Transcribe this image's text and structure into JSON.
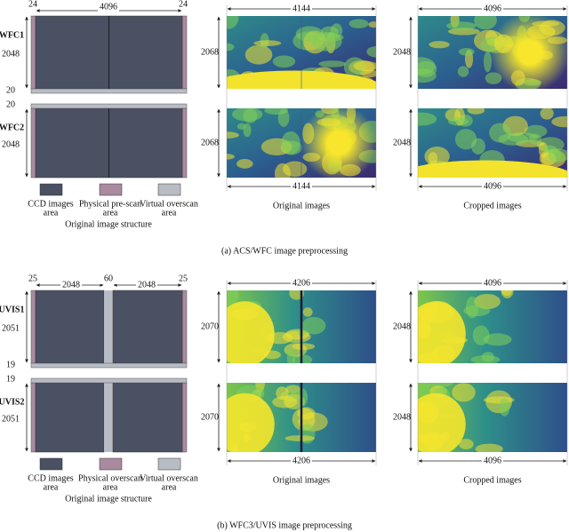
{
  "panels": [
    {
      "caption": "(a)  ACS/WFC image preprocessing",
      "structure": {
        "top_dims": [
          "24",
          "4096",
          "24"
        ],
        "row_labels": [
          "WFC1",
          "WFC2"
        ],
        "row_height": "2048",
        "gap_dims": [
          "20",
          "20"
        ],
        "legend": [
          [
            "CCD images",
            "area"
          ],
          [
            "Physical pre-scan",
            "area"
          ],
          [
            "Virtual overscan",
            "area"
          ]
        ],
        "title": "Original image structure"
      },
      "original": {
        "width": "4144",
        "height": "2068",
        "title": "Original images"
      },
      "cropped": {
        "width": "4096",
        "height": "2048",
        "title": "Cropped images"
      }
    },
    {
      "caption": "(b)  WFC3/UVIS image preprocessing",
      "structure": {
        "top_dims": [
          "25",
          "2048",
          "60",
          "2048",
          "25"
        ],
        "row_labels": [
          "UVIS1",
          "UVIS2"
        ],
        "row_height": "2051",
        "gap_dims": [
          "19",
          "19"
        ],
        "legend": [
          [
            "CCD images",
            "area"
          ],
          [
            "Physical overscan",
            "area"
          ],
          [
            "Virtual overscan",
            "area"
          ]
        ],
        "title": "Original image structure"
      },
      "original": {
        "width": "4206",
        "height": "2070",
        "title": "Original images"
      },
      "cropped": {
        "width": "4096",
        "height": "2048",
        "title": "Cropped images"
      }
    }
  ]
}
